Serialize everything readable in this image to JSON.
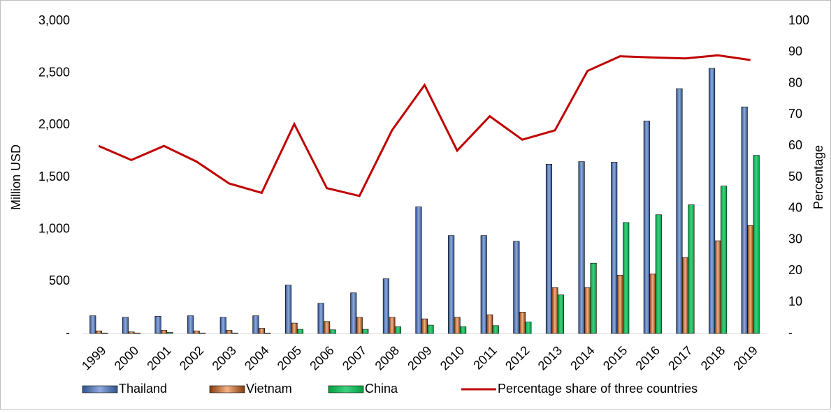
{
  "chart_data": {
    "type": "bar-line",
    "y_label": "Million USD",
    "y2_label": "Percentage",
    "categories": [
      "1999",
      "2000",
      "2001",
      "2002",
      "2003",
      "2004",
      "2005",
      "2006",
      "2007",
      "2008",
      "2009",
      "2010",
      "2011",
      "2012",
      "2013",
      "2014",
      "2015",
      "2016",
      "2017",
      "2018",
      "2019"
    ],
    "series": [
      {
        "name": "Thailand",
        "color": "#4472c4",
        "type": "bar",
        "values": [
          170,
          155,
          165,
          170,
          155,
          170,
          465,
          290,
          390,
          525,
          1215,
          940,
          940,
          885,
          1625,
          1650,
          1645,
          2040,
          2350,
          2545,
          2175
        ]
      },
      {
        "name": "Vietnam",
        "color": "#c55a11",
        "type": "bar",
        "values": [
          25,
          15,
          30,
          25,
          30,
          50,
          100,
          115,
          155,
          155,
          140,
          155,
          180,
          205,
          440,
          440,
          560,
          570,
          730,
          890,
          1035
        ]
      },
      {
        "name": "China",
        "color": "#00b050",
        "type": "bar",
        "values": [
          5,
          5,
          10,
          5,
          5,
          5,
          40,
          35,
          40,
          65,
          80,
          65,
          75,
          110,
          370,
          675,
          1065,
          1140,
          1235,
          1415,
          1710
        ]
      },
      {
        "name": "Percentage share of three countries",
        "color": "#c00000",
        "type": "line",
        "axis": "y2",
        "values": [
          60,
          55.5,
          60,
          55,
          48,
          45,
          67,
          46.5,
          44,
          65,
          79.5,
          58.5,
          69.5,
          62,
          65,
          84,
          88.7,
          88.3,
          88,
          89,
          87.5
        ]
      }
    ],
    "ylim": [
      0,
      3000
    ],
    "yticks": [
      {
        "value": 0,
        "label": "-"
      },
      500,
      {
        "value": 1000,
        "label": "1,000"
      },
      {
        "value": 1500,
        "label": "1,500"
      },
      {
        "value": 2000,
        "label": "2,000"
      },
      {
        "value": 2500,
        "label": "2,500"
      },
      {
        "value": 3000,
        "label": "3,000"
      }
    ],
    "y2lim": [
      0,
      100
    ],
    "y2ticks": [
      {
        "value": 0,
        "label": "-"
      },
      10,
      20,
      30,
      40,
      50,
      60,
      70,
      80,
      90,
      100
    ],
    "legend": "bottom"
  }
}
